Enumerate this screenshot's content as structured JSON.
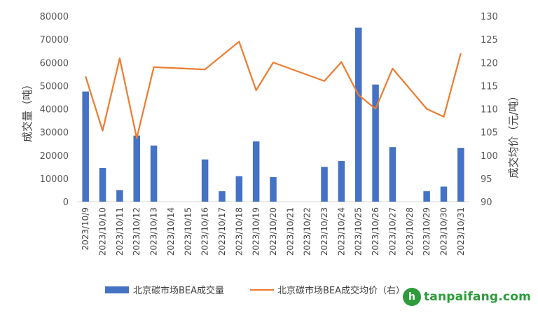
{
  "chart_data": {
    "type": "bar+line",
    "categories": [
      "2023/10/9",
      "2023/10/10",
      "2023/10/11",
      "2023/10/12",
      "2023/10/13",
      "2023/10/14",
      "2023/10/15",
      "2023/10/16",
      "2023/10/17",
      "2023/10/18",
      "2023/10/19",
      "2023/10/20",
      "2023/10/21",
      "2023/10/22",
      "2023/10/23",
      "2023/10/24",
      "2023/10/25",
      "2023/10/26",
      "2023/10/27",
      "2023/10/28",
      "2023/10/29",
      "2023/10/30",
      "2023/10/31"
    ],
    "series": [
      {
        "name": "北京碳市场BEA成交量",
        "type": "bar",
        "axis": "left",
        "color": "#4472c4",
        "values": [
          47500,
          14500,
          5000,
          28500,
          24200,
          0,
          0,
          18200,
          4500,
          11000,
          26000,
          10600,
          0,
          0,
          15000,
          17500,
          75000,
          50500,
          23500,
          0,
          4500,
          6500,
          23200
        ]
      },
      {
        "name": "北京碳市场BEA成交均价（右）",
        "type": "line",
        "axis": "right",
        "color": "#ed7d31",
        "values": [
          117,
          105.3,
          120.9,
          103.7,
          119,
          null,
          null,
          118.5,
          null,
          124.5,
          114,
          120,
          null,
          null,
          116,
          120.1,
          113,
          110,
          118.7,
          null,
          110,
          108.3,
          122
        ]
      }
    ],
    "ylabel_left": "成交量（吨）",
    "ylabel_right": "成交均价（元/吨）",
    "ylim_left": [
      0,
      80000
    ],
    "yticks_left": [
      "0",
      "10000",
      "20000",
      "30000",
      "40000",
      "50000",
      "60000",
      "70000",
      "80000"
    ],
    "ylim_right": [
      90,
      130
    ],
    "yticks_right": [
      "90",
      "95",
      "100",
      "105",
      "110",
      "115",
      "120",
      "125",
      "130"
    ],
    "grid": false,
    "legend_position": "bottom"
  },
  "watermark": {
    "logo_letter": "h",
    "text": "tanpaifang.com"
  }
}
